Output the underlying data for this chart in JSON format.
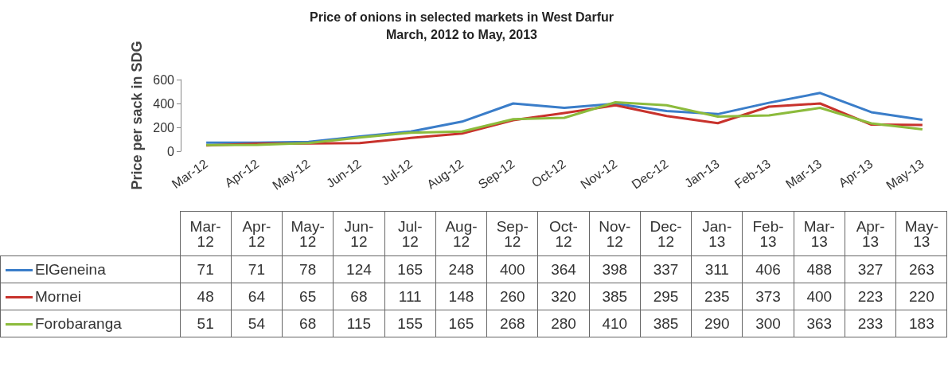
{
  "chart_data": {
    "type": "line",
    "title": "Price of onions in selected markets in West Darfur",
    "subtitle": "March, 2012 to May, 2013",
    "ylabel": "Price per sack in SDG",
    "categories": [
      "Mar-12",
      "Apr-12",
      "May-12",
      "Jun-12",
      "Jul-12",
      "Aug-12",
      "Sep-12",
      "Oct-12",
      "Nov-12",
      "Dec-12",
      "Jan-13",
      "Feb-13",
      "Mar-13",
      "Apr-13",
      "May-13"
    ],
    "series": [
      {
        "name": "ElGeneina",
        "color": "#3a7dc9",
        "values": [
          71,
          71,
          78,
          124,
          165,
          248,
          400,
          364,
          398,
          337,
          311,
          406,
          488,
          327,
          263
        ]
      },
      {
        "name": "Mornei",
        "color": "#c8322c",
        "values": [
          48,
          64,
          65,
          68,
          111,
          148,
          260,
          320,
          385,
          295,
          235,
          373,
          400,
          223,
          220
        ]
      },
      {
        "name": "Forobaranga",
        "color": "#8cbb3c",
        "values": [
          51,
          54,
          68,
          115,
          155,
          165,
          268,
          280,
          410,
          385,
          290,
          300,
          363,
          233,
          183
        ]
      }
    ],
    "ylim": [
      0,
      600
    ],
    "yticks": [
      0,
      200,
      400,
      600
    ],
    "grid": false,
    "marker": "none",
    "legend": "bottom",
    "data_labels": true
  }
}
